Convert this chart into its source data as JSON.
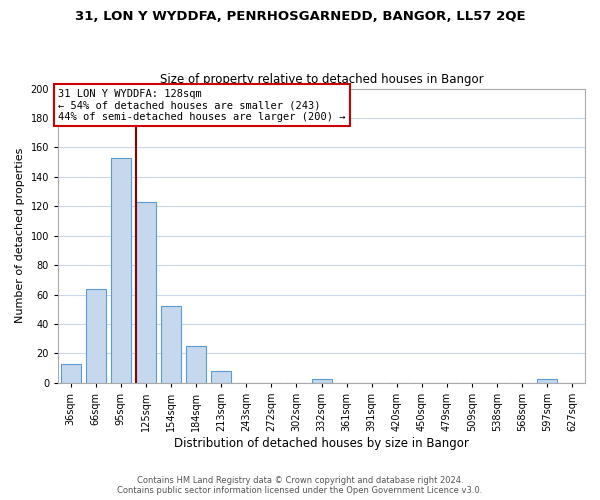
{
  "title1": "31, LON Y WYDDFA, PENRHOSGARNEDD, BANGOR, LL57 2QE",
  "title2": "Size of property relative to detached houses in Bangor",
  "xlabel": "Distribution of detached houses by size in Bangor",
  "ylabel": "Number of detached properties",
  "bar_labels": [
    "36sqm",
    "66sqm",
    "95sqm",
    "125sqm",
    "154sqm",
    "184sqm",
    "213sqm",
    "243sqm",
    "272sqm",
    "302sqm",
    "332sqm",
    "361sqm",
    "391sqm",
    "420sqm",
    "450sqm",
    "479sqm",
    "509sqm",
    "538sqm",
    "568sqm",
    "597sqm",
    "627sqm"
  ],
  "bar_values": [
    13,
    64,
    153,
    123,
    52,
    25,
    8,
    0,
    0,
    0,
    3,
    0,
    0,
    0,
    0,
    0,
    0,
    0,
    0,
    3,
    0
  ],
  "bar_color": "#c5d8ed",
  "bar_edgecolor": "#5b9bd5",
  "property_line_color": "#8b0000",
  "ylim": [
    0,
    200
  ],
  "yticks": [
    0,
    20,
    40,
    60,
    80,
    100,
    120,
    140,
    160,
    180,
    200
  ],
  "annotation_title": "31 LON Y WYDDFA: 128sqm",
  "annotation_line1": "← 54% of detached houses are smaller (243)",
  "annotation_line2": "44% of semi-detached houses are larger (200) →",
  "annotation_box_color": "#ffffff",
  "annotation_box_edgecolor": "#cc0000",
  "footer1": "Contains HM Land Registry data © Crown copyright and database right 2024.",
  "footer2": "Contains public sector information licensed under the Open Government Licence v3.0.",
  "background_color": "#ffffff",
  "grid_color": "#c8d8e8"
}
